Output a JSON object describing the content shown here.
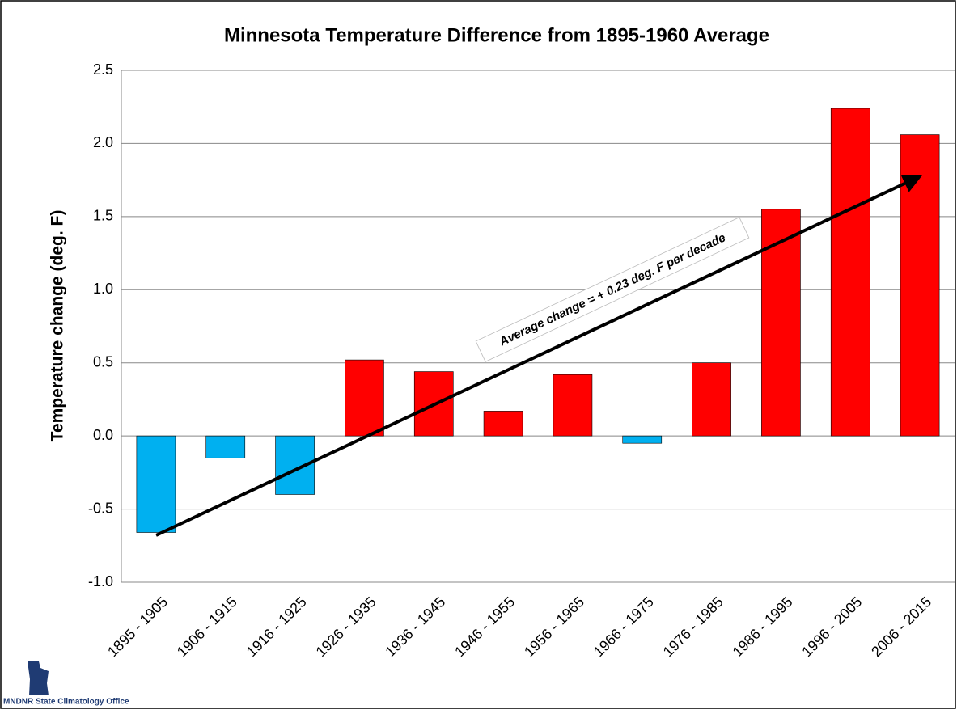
{
  "chart_data": {
    "type": "bar",
    "title": "Minnesota Temperature Difference from 1895-1960 Average",
    "y_label": "Temperature change  (deg. F)",
    "annotation": "Average change = + 0.23 deg. F per decade",
    "source": "MNDNR State Climatology Office",
    "categories": [
      "1895 - 1905",
      "1906 - 1915",
      "1916 - 1925",
      "1926 - 1935",
      "1936 - 1945",
      "1946 - 1955",
      "1956 - 1965",
      "1966 - 1975",
      "1976 - 1985",
      "1986 - 1995",
      "1996 - 2005",
      "2006 - 2015"
    ],
    "values": [
      -0.66,
      -0.15,
      -0.4,
      0.52,
      0.44,
      0.17,
      0.42,
      -0.05,
      0.5,
      1.55,
      2.24,
      2.06
    ],
    "colors": [
      "#00b0f0",
      "#00b0f0",
      "#00b0f0",
      "#ff0000",
      "#ff0000",
      "#ff0000",
      "#ff0000",
      "#00b0f0",
      "#ff0000",
      "#ff0000",
      "#ff0000",
      "#ff0000"
    ],
    "ylim": [
      -1,
      2.5
    ],
    "yticks": [
      {
        "value": -1,
        "label": "-1.0"
      },
      -0.5,
      {
        "value": 0,
        "label": "0.0"
      },
      0.5,
      {
        "value": 1,
        "label": "1.0"
      },
      1.5,
      {
        "value": 2,
        "label": "2.0"
      },
      2.5
    ],
    "grid": true
  }
}
